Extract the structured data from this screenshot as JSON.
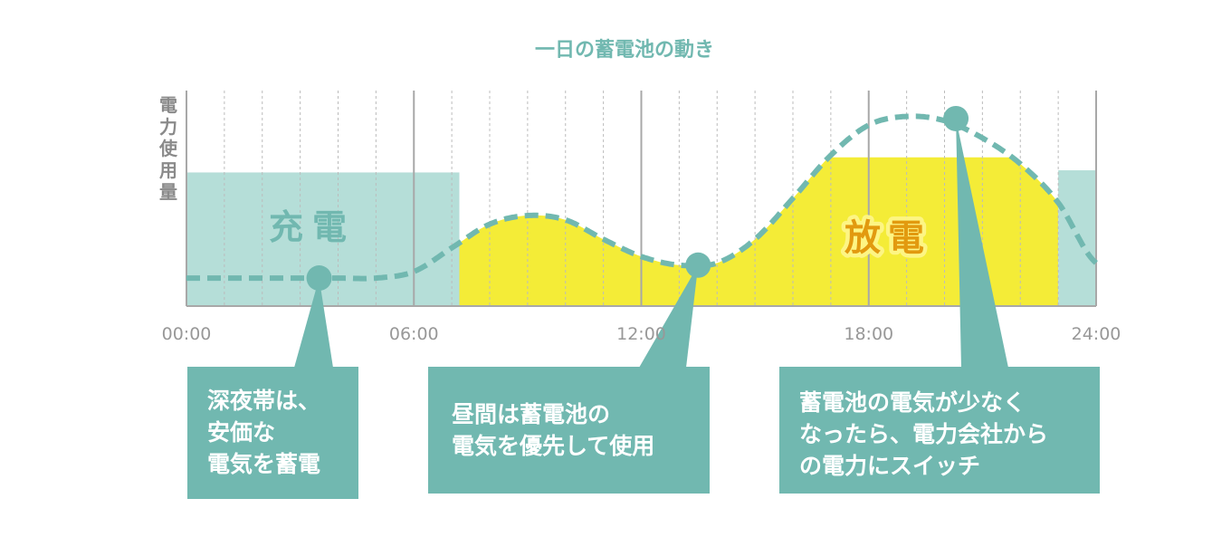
{
  "chart_data": {
    "type": "area",
    "title": "一日の蓄電池の動き",
    "ylabel": "電力使用量",
    "x_ticks": [
      "00:00",
      "06:00",
      "12:00",
      "18:00",
      "24:00"
    ],
    "xlim_hours": [
      0,
      24
    ],
    "ylim": [
      0,
      100
    ],
    "grid": {
      "major_every_hours": 6,
      "minor_every_hours": 1
    },
    "power_usage_curve": {
      "style": "dashed",
      "x_hours": [
        0,
        1,
        2,
        3,
        4,
        5,
        6,
        7,
        8,
        9,
        10,
        11,
        12,
        13,
        14,
        15,
        16,
        17,
        18,
        19,
        20,
        21,
        22,
        23,
        24
      ],
      "values": [
        13,
        13,
        13,
        13,
        13,
        13,
        16,
        27,
        38,
        42,
        40,
        31,
        23,
        19,
        20,
        31,
        50,
        70,
        84,
        88,
        86,
        78,
        66,
        48,
        20
      ]
    },
    "regions": [
      {
        "label": "充電",
        "kind": "charge",
        "x_start": 0,
        "x_end": 7.2,
        "level": 62
      },
      {
        "label": "放電",
        "kind": "discharge",
        "x_start": 7.2,
        "x_end": 23,
        "follows_curve_up_to": 69
      },
      {
        "label": "",
        "kind": "charge",
        "x_start": 23,
        "x_end": 24,
        "level": 63
      }
    ],
    "markers": [
      {
        "x": 3.5,
        "y": 13,
        "note": "深夜帯は、安価な電気を蓄電"
      },
      {
        "x": 13.5,
        "y": 19,
        "note": "昼間は蓄電池の電気を優先して使用"
      },
      {
        "x": 20.3,
        "y": 87,
        "note": "蓄電池の電気が少なくなったら、電力会社からの電力にスイッチ"
      }
    ],
    "colors": {
      "charge": "#b5ded8",
      "discharge": "#f4ec37",
      "curve": "#71b8b0",
      "callout": "#71b8b0",
      "charge_label": "#71b8b0",
      "discharge_label": "#e29a0f",
      "discharge_label_glow": "#fdf584",
      "axis": "#a8a8a8",
      "tick_label": "#989898"
    }
  },
  "callouts": {
    "night": [
      "深夜帯は、",
      "安価な",
      "電気を蓄電"
    ],
    "day": [
      "昼間は蓄電池の",
      "電気を優先して使用"
    ],
    "switch": [
      "蓄電池の電気が少なく",
      "なったら、電力会社から",
      "の電力にスイッチ"
    ]
  }
}
